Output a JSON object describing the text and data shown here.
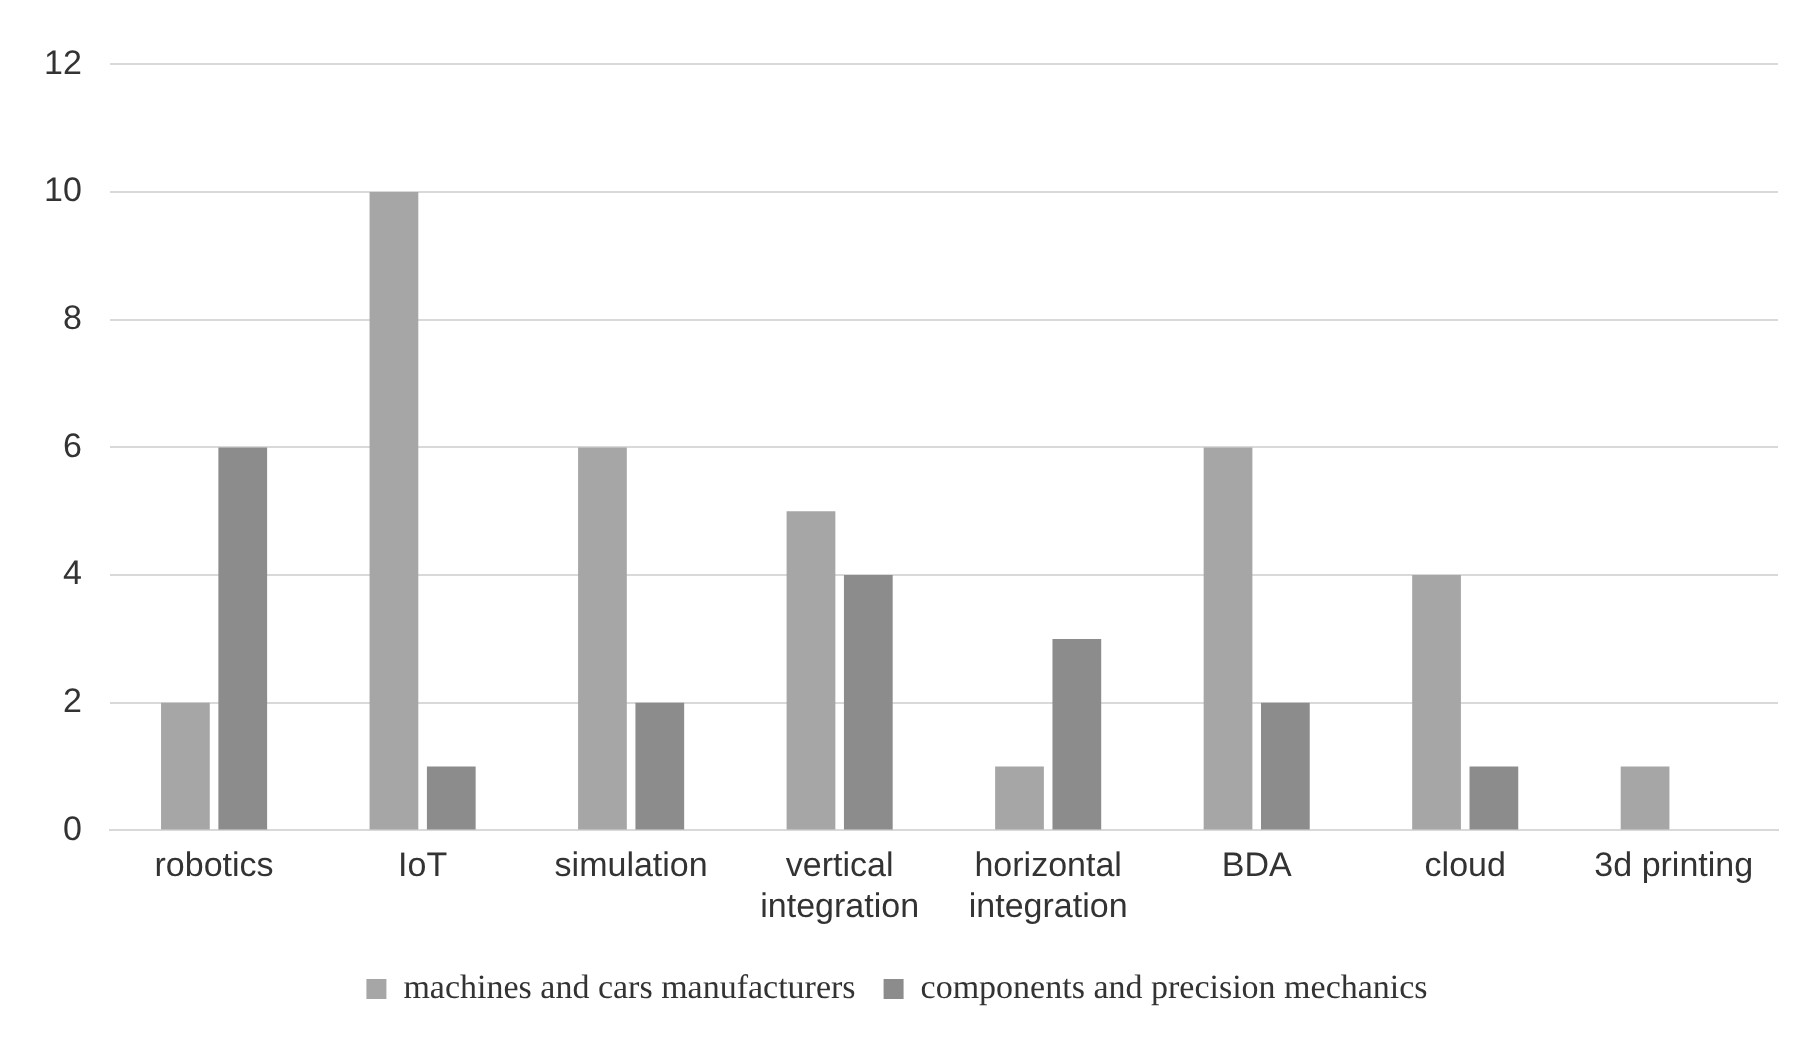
{
  "chart_data": {
    "type": "bar",
    "categories": [
      "robotics",
      "IoT",
      "simulation",
      "vertical integration",
      "horizontal integration",
      "BDA",
      "cloud",
      "3d printing"
    ],
    "series": [
      {
        "name": "machines and cars manufacturers",
        "color": "#a6a6a6",
        "values": [
          2,
          10,
          6,
          5,
          1,
          6,
          4,
          1
        ]
      },
      {
        "name": "components and precision mechanics",
        "color": "#8c8c8c",
        "values": [
          6,
          1,
          2,
          4,
          3,
          2,
          1,
          0
        ]
      }
    ],
    "ylim": [
      0,
      12
    ],
    "yticks": [
      0,
      2,
      4,
      6,
      8,
      10,
      12
    ],
    "grid": "y",
    "legend": "bottom"
  }
}
